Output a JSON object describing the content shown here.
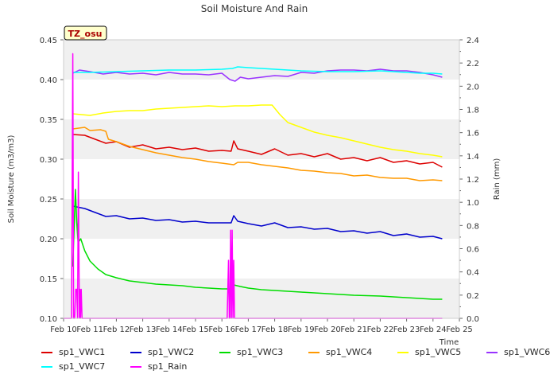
{
  "chart_data": {
    "type": "line",
    "title": "Soil Moisture And Rain",
    "xlabel": "Time",
    "ylabel": "Soil Moisture (m3/m3)",
    "y2label": "Rain (mm)",
    "badge": "TZ_osu",
    "x_ticks": [
      "Feb 10",
      "Feb 11",
      "Feb 12",
      "Feb 13",
      "Feb 14",
      "Feb 15",
      "Feb 16",
      "Feb 17",
      "Feb 18",
      "Feb 19",
      "Feb 20",
      "Feb 21",
      "Feb 22",
      "Feb 23",
      "Feb 24",
      "Feb 25"
    ],
    "xlim": [
      10,
      25
    ],
    "ylim": [
      0.1,
      0.45
    ],
    "y_ticks": [
      "0.10",
      "0.15",
      "0.20",
      "0.25",
      "0.30",
      "0.35",
      "0.40",
      "0.45"
    ],
    "y2lim": [
      0.0,
      2.4
    ],
    "y2_ticks": [
      "0.0",
      "0.2",
      "0.4",
      "0.6",
      "0.8",
      "1.0",
      "1.2",
      "1.4",
      "1.6",
      "1.8",
      "2.0",
      "2.2",
      "2.4"
    ],
    "grid": "horizontal bands",
    "legend_position": "bottom",
    "series": [
      {
        "name": "sp1_VWC1",
        "color": "#dd0000",
        "axis": "left",
        "x": [
          10.35,
          10.8,
          11.2,
          11.6,
          12,
          12.5,
          13,
          13.5,
          14,
          14.5,
          15,
          15.5,
          16,
          16.35,
          16.45,
          16.6,
          17,
          17.5,
          18,
          18.5,
          19,
          19.5,
          20,
          20.5,
          21,
          21.5,
          22,
          22.5,
          23,
          23.5,
          24,
          24.35
        ],
        "y": [
          0.331,
          0.33,
          0.325,
          0.32,
          0.322,
          0.315,
          0.318,
          0.313,
          0.315,
          0.312,
          0.314,
          0.31,
          0.311,
          0.31,
          0.323,
          0.313,
          0.31,
          0.306,
          0.313,
          0.305,
          0.307,
          0.303,
          0.307,
          0.3,
          0.302,
          0.298,
          0.302,
          0.296,
          0.298,
          0.294,
          0.296,
          0.29
        ]
      },
      {
        "name": "sp1_VWC2",
        "color": "#0000cc",
        "axis": "left",
        "x": [
          10.35,
          10.8,
          11.2,
          11.6,
          12,
          12.5,
          13,
          13.5,
          14,
          14.5,
          15,
          15.5,
          16,
          16.35,
          16.45,
          16.6,
          17,
          17.5,
          18,
          18.5,
          19,
          19.5,
          20,
          20.5,
          21,
          21.5,
          22,
          22.5,
          23,
          23.5,
          24,
          24.35
        ],
        "y": [
          0.241,
          0.238,
          0.233,
          0.228,
          0.229,
          0.225,
          0.226,
          0.223,
          0.224,
          0.221,
          0.222,
          0.22,
          0.22,
          0.22,
          0.229,
          0.222,
          0.219,
          0.216,
          0.22,
          0.214,
          0.215,
          0.212,
          0.213,
          0.209,
          0.21,
          0.207,
          0.209,
          0.204,
          0.206,
          0.202,
          0.203,
          0.2
        ]
      },
      {
        "name": "sp1_VWC3",
        "color": "#00dd00",
        "axis": "left",
        "x": [
          10.35,
          10.45,
          10.5,
          10.55,
          10.65,
          10.8,
          11,
          11.3,
          11.6,
          12,
          12.5,
          13,
          13.5,
          14,
          14.5,
          15,
          15.5,
          16,
          16.35,
          16.45,
          16.7,
          17,
          17.5,
          18,
          18.5,
          19,
          20,
          21,
          22,
          23,
          24,
          24.35
        ],
        "y": [
          0.165,
          0.262,
          0.22,
          0.195,
          0.2,
          0.185,
          0.172,
          0.162,
          0.155,
          0.151,
          0.147,
          0.145,
          0.143,
          0.142,
          0.141,
          0.139,
          0.138,
          0.137,
          0.137,
          0.142,
          0.14,
          0.138,
          0.136,
          0.135,
          0.134,
          0.133,
          0.131,
          0.129,
          0.128,
          0.126,
          0.124,
          0.124
        ]
      },
      {
        "name": "sp1_VWC4",
        "color": "#ff9900",
        "axis": "left",
        "x": [
          10.35,
          10.8,
          11.0,
          11.4,
          11.6,
          11.7,
          12,
          12.5,
          13,
          13.5,
          14,
          14.5,
          15,
          15.5,
          16,
          16.45,
          16.6,
          17,
          17.5,
          18,
          18.5,
          19,
          19.5,
          20,
          20.5,
          21,
          21.5,
          22,
          22.5,
          23,
          23.5,
          24,
          24.35
        ],
        "y": [
          0.338,
          0.34,
          0.336,
          0.337,
          0.335,
          0.325,
          0.322,
          0.316,
          0.312,
          0.308,
          0.305,
          0.302,
          0.3,
          0.297,
          0.295,
          0.293,
          0.296,
          0.296,
          0.293,
          0.291,
          0.289,
          0.286,
          0.285,
          0.283,
          0.282,
          0.279,
          0.28,
          0.277,
          0.276,
          0.276,
          0.273,
          0.274,
          0.273
        ]
      },
      {
        "name": "sp1_VWC5",
        "color": "#ffff00",
        "axis": "left",
        "x": [
          10.35,
          11,
          11.5,
          12,
          12.5,
          13,
          13.5,
          14,
          14.5,
          15,
          15.5,
          16,
          16.5,
          17,
          17.5,
          17.9,
          18.2,
          18.5,
          19,
          19.5,
          20,
          20.5,
          21,
          21.5,
          22,
          22.5,
          23,
          23.5,
          24,
          24.35
        ],
        "y": [
          0.357,
          0.355,
          0.358,
          0.36,
          0.361,
          0.361,
          0.363,
          0.364,
          0.365,
          0.366,
          0.367,
          0.366,
          0.367,
          0.367,
          0.368,
          0.368,
          0.356,
          0.346,
          0.34,
          0.334,
          0.33,
          0.327,
          0.323,
          0.319,
          0.315,
          0.312,
          0.31,
          0.307,
          0.305,
          0.303
        ]
      },
      {
        "name": "sp1_VWC6",
        "color": "#9933ff",
        "axis": "left",
        "x": [
          10.35,
          10.6,
          11,
          11.5,
          12,
          12.5,
          13,
          13.5,
          14,
          14.5,
          15,
          15.5,
          16,
          16.3,
          16.5,
          16.7,
          17,
          17.5,
          18,
          18.5,
          19,
          19.5,
          20,
          20.5,
          21,
          21.5,
          22,
          22.5,
          23,
          23.5,
          24,
          24.35
        ],
        "y": [
          0.408,
          0.412,
          0.41,
          0.407,
          0.409,
          0.407,
          0.408,
          0.406,
          0.409,
          0.407,
          0.407,
          0.406,
          0.408,
          0.4,
          0.398,
          0.403,
          0.401,
          0.403,
          0.405,
          0.404,
          0.409,
          0.408,
          0.411,
          0.412,
          0.412,
          0.411,
          0.413,
          0.411,
          0.411,
          0.409,
          0.406,
          0.403
        ]
      },
      {
        "name": "sp1_VWC7",
        "color": "#00ffff",
        "axis": "left",
        "x": [
          10.35,
          11,
          12,
          13,
          14,
          15,
          16,
          16.4,
          16.6,
          17,
          17.5,
          18,
          18.5,
          19,
          20,
          21,
          22,
          22.5,
          23,
          23.5,
          24,
          24.35
        ],
        "y": [
          0.409,
          0.409,
          0.41,
          0.411,
          0.412,
          0.412,
          0.413,
          0.414,
          0.416,
          0.415,
          0.414,
          0.413,
          0.412,
          0.411,
          0.41,
          0.41,
          0.411,
          0.41,
          0.409,
          0.408,
          0.408,
          0.407
        ]
      },
      {
        "name": "sp1_Rain",
        "color": "#ff00ff",
        "axis": "right",
        "x": [
          10.0,
          10.3,
          10.35,
          10.38,
          10.42,
          10.46,
          10.5,
          10.53,
          10.56,
          10.6,
          10.62,
          10.64,
          10.67,
          10.7,
          10.73,
          10.76,
          10.8,
          16.0,
          16.2,
          16.25,
          16.28,
          16.3,
          16.33,
          16.36,
          16.39,
          16.42,
          16.45,
          16.48,
          16.52,
          24.35
        ],
        "y": [
          0.0,
          0.0,
          2.28,
          0.0,
          0.0,
          0.25,
          0.25,
          0.0,
          1.26,
          0.0,
          0.25,
          0.0,
          0.25,
          0.0,
          0.0,
          0.0,
          0.0,
          0.0,
          0.0,
          0.5,
          0.0,
          0.0,
          0.76,
          0.0,
          0.76,
          0.0,
          0.5,
          0.0,
          0.0,
          0.0
        ]
      }
    ]
  }
}
